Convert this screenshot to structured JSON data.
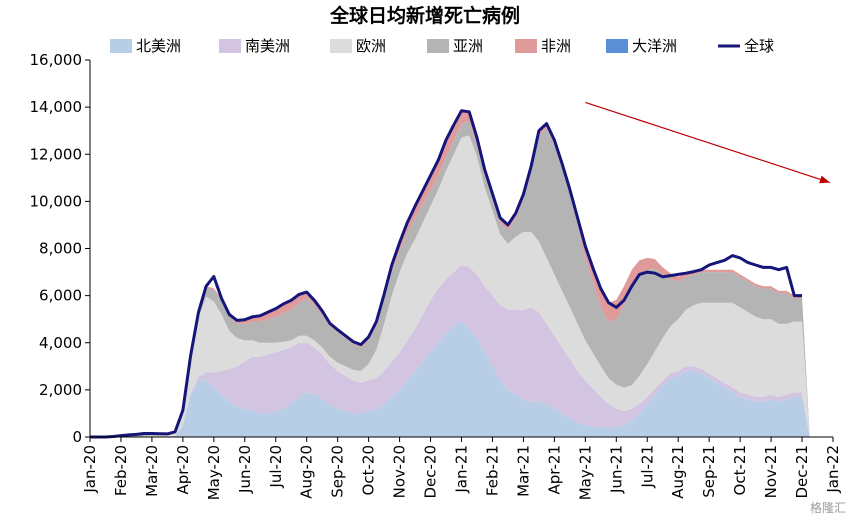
{
  "chart_data": {
    "type": "area",
    "title": "全球日均新增死亡病例",
    "xlabel": "",
    "ylabel": "",
    "ylim": [
      0,
      16000
    ],
    "yticks": [
      0,
      2000,
      4000,
      6000,
      8000,
      10000,
      12000,
      14000,
      16000
    ],
    "ytick_labels": [
      "0",
      "2,000",
      "4,000",
      "6,000",
      "8,000",
      "10,000",
      "12,000",
      "14,000",
      "16,000"
    ],
    "xtick_labels": [
      "Jan-20",
      "Feb-20",
      "Mar-20",
      "Apr-20",
      "May-20",
      "Jun-20",
      "Jul-20",
      "Aug-20",
      "Sep-20",
      "Oct-20",
      "Nov-20",
      "Dec-20",
      "Jan-21",
      "Feb-21",
      "Mar-21",
      "Apr-21",
      "May-21",
      "Jun-21",
      "Jul-21",
      "Aug-21",
      "Sep-21",
      "Oct-21",
      "Nov-21",
      "Dec-21",
      "Jan-22"
    ],
    "x_months": [
      0,
      0.25,
      0.5,
      0.75,
      1,
      1.25,
      1.5,
      1.75,
      2,
      2.25,
      2.5,
      2.75,
      3,
      3.25,
      3.5,
      3.75,
      4,
      4.25,
      4.5,
      4.75,
      5,
      5.25,
      5.5,
      5.75,
      6,
      6.25,
      6.5,
      6.75,
      7,
      7.25,
      7.5,
      7.75,
      8,
      8.25,
      8.5,
      8.75,
      9,
      9.25,
      9.5,
      9.75,
      10,
      10.25,
      10.5,
      10.75,
      11,
      11.25,
      11.5,
      11.75,
      12,
      12.25,
      12.5,
      12.75,
      13,
      13.25,
      13.5,
      13.75,
      14,
      14.25,
      14.5,
      14.75,
      15,
      15.25,
      15.5,
      15.75,
      16,
      16.25,
      16.5,
      16.75,
      17,
      17.25,
      17.5,
      17.75,
      18,
      18.25,
      18.5,
      18.75,
      19,
      19.25,
      19.5,
      19.75,
      20,
      20.25,
      20.5,
      20.75,
      21,
      21.25,
      21.5,
      21.75,
      22,
      22.25,
      22.5,
      22.75,
      23,
      23.25,
      23.5,
      23.75,
      24
    ],
    "series": [
      {
        "name": "北美洲",
        "color": "#b8cde6",
        "values": [
          0,
          0,
          0,
          0,
          0,
          0,
          0,
          0,
          0,
          0,
          0,
          50,
          500,
          1800,
          2400,
          2400,
          2100,
          1800,
          1500,
          1300,
          1200,
          1100,
          1000,
          1000,
          1100,
          1200,
          1400,
          1700,
          1900,
          1800,
          1600,
          1400,
          1200,
          1100,
          1000,
          1000,
          1100,
          1200,
          1400,
          1700,
          2000,
          2400,
          2800,
          3200,
          3600,
          4000,
          4400,
          4700,
          4900,
          4600,
          4200,
          3600,
          3000,
          2400,
          2000,
          1800,
          1600,
          1500,
          1500,
          1400,
          1200,
          1000,
          800,
          600,
          500,
          450,
          400,
          400,
          420,
          500,
          700,
          1000,
          1400,
          1800,
          2200,
          2500,
          2600,
          2800,
          2800,
          2700,
          2500,
          2300,
          2100,
          1900,
          1700,
          1600,
          1500,
          1500,
          1600,
          1500,
          1600,
          1700,
          1700
        ]
      },
      {
        "name": "南美洲",
        "color": "#d3c5e1",
        "values": [
          0,
          0,
          0,
          0,
          0,
          0,
          0,
          0,
          0,
          0,
          0,
          0,
          10,
          40,
          150,
          350,
          650,
          1000,
          1400,
          1700,
          2000,
          2300,
          2400,
          2500,
          2500,
          2500,
          2400,
          2300,
          2100,
          2000,
          1900,
          1700,
          1600,
          1500,
          1400,
          1300,
          1300,
          1300,
          1400,
          1500,
          1600,
          1700,
          1800,
          2000,
          2200,
          2300,
          2300,
          2300,
          2400,
          2600,
          2700,
          2800,
          3000,
          3200,
          3400,
          3600,
          3800,
          4000,
          3800,
          3400,
          3100,
          2800,
          2500,
          2200,
          1900,
          1600,
          1300,
          1000,
          800,
          600,
          500,
          400,
          300,
          250,
          200,
          200,
          200,
          200,
          200,
          200,
          200,
          200,
          200,
          200,
          200,
          200,
          200,
          200,
          200,
          200,
          200,
          200,
          200
        ]
      },
      {
        "name": "欧洲",
        "color": "#dcdcdc",
        "values": [
          0,
          0,
          0,
          0,
          0,
          10,
          20,
          40,
          60,
          80,
          100,
          150,
          600,
          1500,
          2500,
          3200,
          3000,
          2400,
          1600,
          1200,
          900,
          700,
          600,
          500,
          400,
          350,
          300,
          300,
          300,
          300,
          300,
          300,
          350,
          400,
          450,
          500,
          700,
          1200,
          2000,
          2800,
          3400,
          3700,
          3800,
          3900,
          4000,
          4200,
          4600,
          5000,
          5400,
          5600,
          5000,
          4200,
          3600,
          3000,
          2800,
          3100,
          3300,
          3200,
          3000,
          2800,
          2600,
          2400,
          2200,
          2000,
          1700,
          1500,
          1300,
          1100,
          1000,
          1000,
          1000,
          1200,
          1400,
          1600,
          1800,
          2000,
          2200,
          2400,
          2600,
          2800,
          3000,
          3200,
          3400,
          3600,
          3600,
          3500,
          3400,
          3300,
          3200,
          3100,
          3000,
          3000,
          3000
        ]
      },
      {
        "name": "亚洲",
        "color": "#b4b4b4",
        "values": [
          0,
          0,
          0,
          20,
          60,
          80,
          90,
          110,
          90,
          60,
          30,
          20,
          30,
          100,
          200,
          400,
          500,
          600,
          600,
          600,
          700,
          800,
          900,
          1000,
          1100,
          1200,
          1300,
          1400,
          1600,
          1500,
          1400,
          1300,
          1300,
          1200,
          1100,
          1000,
          1000,
          1000,
          1000,
          1000,
          900,
          900,
          900,
          800,
          700,
          600,
          600,
          600,
          600,
          600,
          500,
          500,
          500,
          500,
          600,
          800,
          1400,
          2600,
          4500,
          5500,
          5500,
          5200,
          4800,
          4200,
          3500,
          3000,
          2500,
          2400,
          2800,
          3500,
          4200,
          4300,
          4000,
          3500,
          2700,
          2000,
          1600,
          1400,
          1300,
          1300,
          1300,
          1300,
          1300,
          1300,
          1300,
          1300,
          1300,
          1300,
          1300,
          1300,
          1300,
          1000,
          1000
        ]
      },
      {
        "name": "非洲",
        "color": "#e09a9a",
        "values": [
          0,
          0,
          0,
          0,
          0,
          0,
          0,
          0,
          0,
          0,
          0,
          0,
          0,
          10,
          30,
          50,
          60,
          80,
          100,
          150,
          180,
          200,
          250,
          300,
          350,
          400,
          400,
          350,
          250,
          200,
          150,
          120,
          100,
          100,
          100,
          120,
          150,
          200,
          250,
          300,
          350,
          400,
          500,
          550,
          600,
          650,
          700,
          650,
          550,
          400,
          300,
          250,
          220,
          200,
          200,
          200,
          200,
          200,
          200,
          200,
          200,
          200,
          200,
          300,
          500,
          600,
          700,
          800,
          800,
          800,
          700,
          600,
          500,
          400,
          300,
          250,
          200,
          150,
          120,
          100,
          100,
          100,
          100,
          100,
          100,
          100,
          100,
          100,
          100,
          100,
          100,
          100,
          100
        ]
      },
      {
        "name": "大洋洲",
        "color": "#5a8fd6",
        "values": [
          0,
          0,
          0,
          0,
          0,
          0,
          0,
          0,
          0,
          0,
          0,
          0,
          0,
          0,
          0,
          0,
          0,
          0,
          0,
          0,
          0,
          0,
          0,
          0,
          0,
          0,
          0,
          0,
          0,
          0,
          0,
          0,
          0,
          0,
          0,
          0,
          0,
          0,
          0,
          0,
          0,
          0,
          0,
          0,
          0,
          0,
          0,
          0,
          0,
          0,
          0,
          0,
          0,
          0,
          0,
          0,
          0,
          0,
          0,
          0,
          0,
          0,
          0,
          0,
          0,
          0,
          0,
          0,
          0,
          0,
          0,
          0,
          0,
          0,
          0,
          0,
          0,
          0,
          0,
          0,
          0,
          0,
          0,
          0,
          0,
          0,
          0,
          0,
          0,
          0,
          0,
          0,
          0
        ]
      },
      {
        "name": "全球",
        "color": "#15157a",
        "type": "line",
        "values": [
          0,
          0,
          0,
          20,
          60,
          90,
          110,
          150,
          150,
          140,
          130,
          220,
          1140,
          3450,
          5280,
          6400,
          6810,
          5880,
          5200,
          4950,
          4980,
          5100,
          5150,
          5300,
          5450,
          5650,
          5800,
          6050,
          6150,
          5800,
          5350,
          4820,
          4550,
          4300,
          4050,
          3920,
          4250,
          4900,
          6050,
          7300,
          8250,
          9100,
          9800,
          10450,
          11100,
          11750,
          12600,
          13250,
          13850,
          13800,
          12700,
          11350,
          10320,
          9300,
          9000,
          9500,
          10300,
          11500,
          13000,
          13300,
          12600,
          11600,
          10500,
          9300,
          8100,
          7150,
          6300,
          5700,
          5500,
          5800,
          6400,
          6900,
          7000,
          6950,
          6800,
          6850,
          6900,
          6950,
          7020,
          7100,
          7300,
          7400,
          7500,
          7700,
          7600,
          7400,
          7300,
          7200,
          7200,
          7100,
          7200,
          6000,
          6000
        ]
      }
    ],
    "legend": {
      "position": "top",
      "entries": [
        "北美洲",
        "南美洲",
        "欧洲",
        "亚洲",
        "非洲",
        "大洋洲",
        "全球"
      ]
    },
    "annotation": {
      "type": "arrow",
      "color": "#c00000",
      "from": [
        16.0,
        14200
      ],
      "to": [
        23.9,
        10800
      ]
    },
    "grid": false
  },
  "watermark": "格隆汇"
}
